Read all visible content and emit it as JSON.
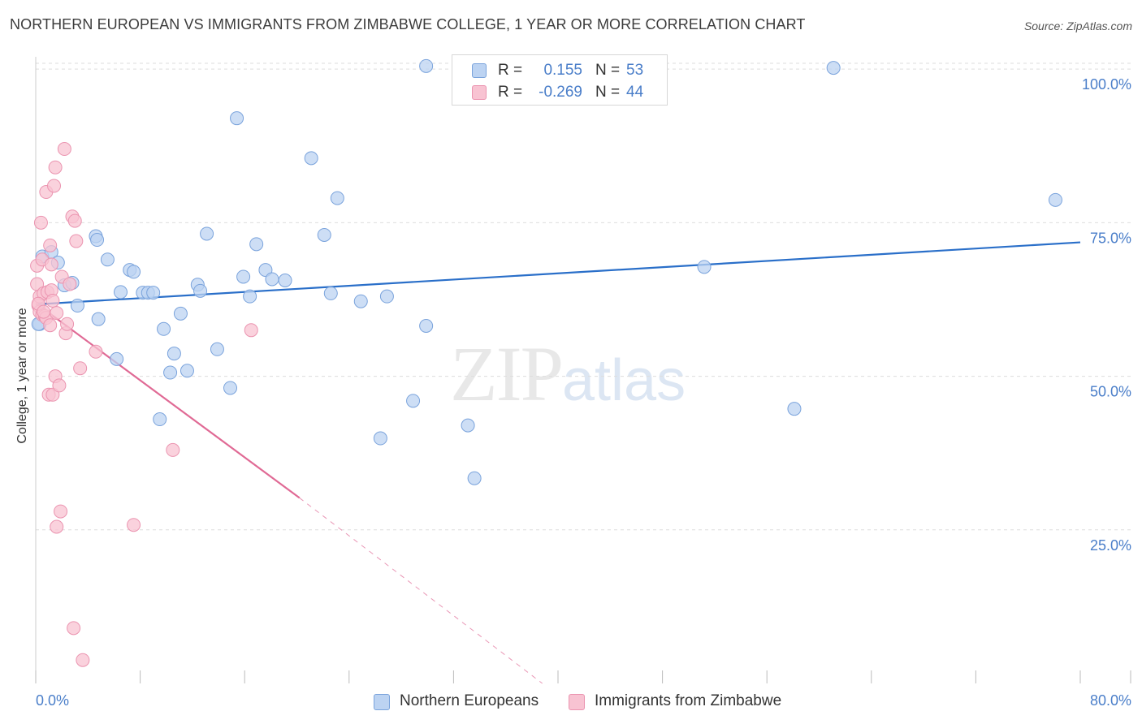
{
  "header": {
    "title": "NORTHERN EUROPEAN VS IMMIGRANTS FROM ZIMBABWE COLLEGE, 1 YEAR OR MORE CORRELATION CHART",
    "source": "Source: ZipAtlas.com"
  },
  "watermark": {
    "zip": "ZIP",
    "atlas": "atlas"
  },
  "legend_top": [
    {
      "r_label": "R =",
      "r_value": "0.155",
      "n_label": "N =",
      "n_value": "53"
    },
    {
      "r_label": "R =",
      "r_value": "-0.269",
      "n_label": "N =",
      "n_value": "44"
    }
  ],
  "legend_bottom": [
    {
      "label": "Northern Europeans"
    },
    {
      "label": "Immigrants from Zimbabwe"
    }
  ],
  "colors": {
    "blue_fill": "#bcd3f2",
    "blue_stroke": "#7aa3dc",
    "blue_line": "#2a6fc9",
    "pink_fill": "#f8c3d2",
    "pink_stroke": "#eb94b0",
    "pink_line": "#e06a95",
    "tick_label": "#4a7ec9",
    "grid": "#dddddd"
  },
  "chart_data": {
    "type": "scatter",
    "title": "NORTHERN EUROPEAN VS IMMIGRANTS FROM ZIMBABWE COLLEGE, 1 YEAR OR MORE CORRELATION CHART",
    "xlabel": "",
    "ylabel": "College, 1 year or more",
    "xlim": [
      0,
      80
    ],
    "ylim": [
      0,
      102
    ],
    "x_tick_labels": [
      "0.0%",
      "80.0%"
    ],
    "y_ticks": [
      25,
      50,
      75,
      100
    ],
    "y_tick_labels": [
      "25.0%",
      "50.0%",
      "75.0%",
      "100.0%"
    ],
    "grid": true,
    "legend_position": "top-center",
    "series": [
      {
        "name": "Northern Europeans",
        "color": "#7aa3dc",
        "points": [
          [
            0.3,
            58.5
          ],
          [
            0.5,
            69.5
          ],
          [
            1.2,
            70.2
          ],
          [
            1.7,
            68.5
          ],
          [
            2.2,
            64.8
          ],
          [
            2.8,
            65.2
          ],
          [
            3.2,
            61.5
          ],
          [
            4.6,
            72.8
          ],
          [
            4.7,
            72.2
          ],
          [
            4.8,
            59.3
          ],
          [
            5.5,
            69.0
          ],
          [
            6.2,
            52.8
          ],
          [
            6.5,
            63.7
          ],
          [
            7.2,
            67.3
          ],
          [
            7.5,
            67.0
          ],
          [
            8.2,
            63.6
          ],
          [
            8.6,
            63.6
          ],
          [
            9.0,
            63.6
          ],
          [
            9.5,
            43.0
          ],
          [
            9.8,
            57.7
          ],
          [
            10.3,
            50.6
          ],
          [
            10.6,
            53.7
          ],
          [
            11.1,
            60.2
          ],
          [
            11.6,
            50.9
          ],
          [
            12.4,
            64.9
          ],
          [
            12.6,
            63.9
          ],
          [
            13.1,
            73.2
          ],
          [
            13.9,
            54.4
          ],
          [
            14.9,
            48.1
          ],
          [
            15.4,
            92.0
          ],
          [
            15.9,
            66.2
          ],
          [
            16.4,
            63.0
          ],
          [
            16.9,
            71.5
          ],
          [
            17.6,
            67.3
          ],
          [
            18.1,
            65.8
          ],
          [
            19.1,
            65.6
          ],
          [
            21.1,
            85.5
          ],
          [
            22.1,
            73.0
          ],
          [
            22.6,
            63.5
          ],
          [
            23.1,
            79.0
          ],
          [
            24.9,
            62.2
          ],
          [
            26.4,
            39.9
          ],
          [
            26.9,
            63.0
          ],
          [
            28.9,
            46.0
          ],
          [
            29.9,
            58.2
          ],
          [
            29.9,
            100.5
          ],
          [
            33.1,
            42.0
          ],
          [
            33.6,
            33.4
          ],
          [
            51.2,
            67.8
          ],
          [
            58.1,
            44.7
          ],
          [
            61.1,
            100.2
          ],
          [
            78.1,
            78.7
          ],
          [
            0.2,
            58.5
          ]
        ],
        "trend": {
          "x": [
            0,
            80
          ],
          "y": [
            61.7,
            71.8
          ]
        }
      },
      {
        "name": "Immigrants from Zimbabwe",
        "color": "#eb94b0",
        "points": [
          [
            0.1,
            68.0
          ],
          [
            0.1,
            65.0
          ],
          [
            0.2,
            61.5
          ],
          [
            0.3,
            60.5
          ],
          [
            0.3,
            63.0
          ],
          [
            0.4,
            75.0
          ],
          [
            0.5,
            69.0
          ],
          [
            0.5,
            60.0
          ],
          [
            0.6,
            63.5
          ],
          [
            0.7,
            59.8
          ],
          [
            0.8,
            80.0
          ],
          [
            0.8,
            59.5
          ],
          [
            0.9,
            63.7
          ],
          [
            1.0,
            47.0
          ],
          [
            1.1,
            71.3
          ],
          [
            1.1,
            58.3
          ],
          [
            1.2,
            68.2
          ],
          [
            1.2,
            64.0
          ],
          [
            1.3,
            62.3
          ],
          [
            1.3,
            47.0
          ],
          [
            1.4,
            81.0
          ],
          [
            1.5,
            84.0
          ],
          [
            1.5,
            50.0
          ],
          [
            1.6,
            60.3
          ],
          [
            1.6,
            25.5
          ],
          [
            1.8,
            48.5
          ],
          [
            1.9,
            28.0
          ],
          [
            2.0,
            66.2
          ],
          [
            2.2,
            87.0
          ],
          [
            2.3,
            57.0
          ],
          [
            2.4,
            58.5
          ],
          [
            2.6,
            65.0
          ],
          [
            2.8,
            76.0
          ],
          [
            2.9,
            9.0
          ],
          [
            3.0,
            75.3
          ],
          [
            3.1,
            72.0
          ],
          [
            3.4,
            51.3
          ],
          [
            3.6,
            3.8
          ],
          [
            4.6,
            54.0
          ],
          [
            7.5,
            25.8
          ],
          [
            10.5,
            38.0
          ],
          [
            16.5,
            57.5
          ],
          [
            0.2,
            61.8
          ],
          [
            0.6,
            60.5
          ]
        ],
        "trend": {
          "x": [
            0,
            20.2
          ],
          "y": [
            61.9,
            30.2
          ]
        },
        "trend_extension": {
          "x": [
            20.2,
            38.8
          ],
          "y": [
            30.2,
            0
          ]
        }
      }
    ]
  }
}
